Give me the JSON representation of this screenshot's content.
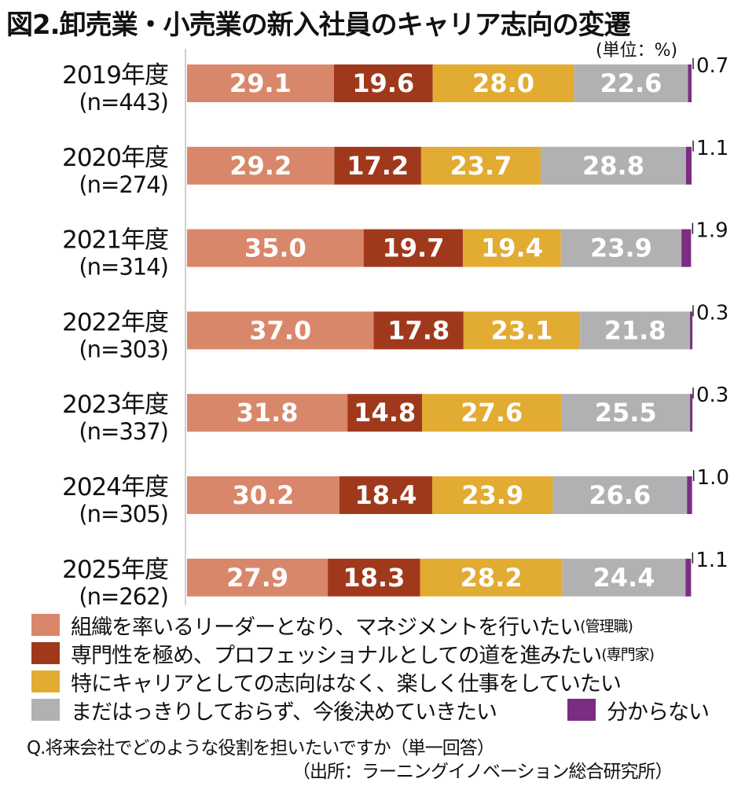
{
  "title": "図2.卸売業・小売業の新入社員のキャリア志向の変遷",
  "unit_label": "(単位：%)",
  "question": "Q.将来会社でどのような役割を担いたいですか（単一回答）",
  "source": "（出所：ラーニングイノベーション総合研究所）",
  "colors": {
    "management": "#d9876a",
    "specialist": "#a0391c",
    "enjoy": "#e2ab32",
    "undecided": "#b1b1b3",
    "unknown": "#7b2d82"
  },
  "legend": [
    {
      "key": "management",
      "text": "組織を率いるリーダーとなり、マネジメントを行いたい",
      "note": "(管理職)"
    },
    {
      "key": "specialist",
      "text": "専門性を極め、プロフェッショナルとしての道を進みたい",
      "note": "(専門家)"
    },
    {
      "key": "enjoy",
      "text": "特にキャリアとしての志向はなく、楽しく仕事をしていたい",
      "note": ""
    },
    {
      "key": "undecided",
      "text": "まだはっきりしておらず、今後決めていきたい",
      "note": ""
    },
    {
      "key": "unknown",
      "text": "分からない",
      "note": ""
    }
  ],
  "chart_data": {
    "type": "bar",
    "orientation": "horizontal",
    "stacked": true,
    "percent_stacked": true,
    "xlim": [
      0,
      100
    ],
    "grid": false,
    "categories": [
      "2019年度",
      "2020年度",
      "2021年度",
      "2022年度",
      "2023年度",
      "2024年度",
      "2025年度"
    ],
    "category_sublabels": [
      "(n=443)",
      "(n=274)",
      "(n=314)",
      "(n=303)",
      "(n=337)",
      "(n=305)",
      "(n=262)"
    ],
    "series": [
      {
        "key": "management",
        "values": [
          29.1,
          29.2,
          35.0,
          37.0,
          31.8,
          30.2,
          27.9
        ]
      },
      {
        "key": "specialist",
        "values": [
          19.6,
          17.2,
          19.7,
          17.8,
          14.8,
          18.4,
          18.3
        ]
      },
      {
        "key": "enjoy",
        "values": [
          28.0,
          23.7,
          19.4,
          23.1,
          27.6,
          23.9,
          28.2
        ]
      },
      {
        "key": "undecided",
        "values": [
          22.6,
          28.8,
          23.9,
          21.8,
          25.5,
          26.6,
          24.4
        ]
      },
      {
        "key": "unknown",
        "values": [
          0.7,
          1.1,
          1.9,
          0.3,
          0.3,
          1.0,
          1.1
        ]
      }
    ],
    "value_labels": [
      [
        "29.1",
        "19.6",
        "28.0",
        "22.6",
        "0.7"
      ],
      [
        "29.2",
        "17.2",
        "23.7",
        "28.8",
        "1.1"
      ],
      [
        "35.0",
        "19.7",
        "19.4",
        "23.9",
        "1.9"
      ],
      [
        "37.0",
        "17.8",
        "23.1",
        "21.8",
        "0.3"
      ],
      [
        "31.8",
        "14.8",
        "27.6",
        "25.5",
        "0.3"
      ],
      [
        "30.2",
        "18.4",
        "23.9",
        "26.6",
        "1.0"
      ],
      [
        "27.9",
        "18.3",
        "28.2",
        "24.4",
        "1.1"
      ]
    ]
  }
}
